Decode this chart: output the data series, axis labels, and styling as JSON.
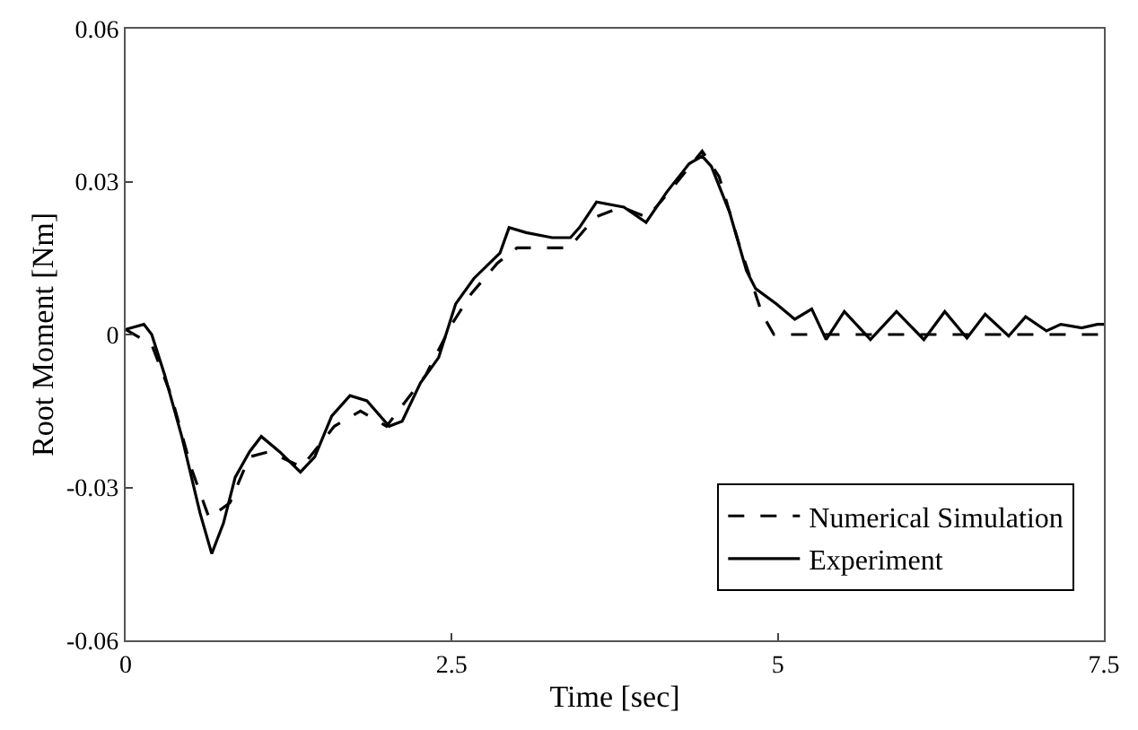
{
  "chart_data": {
    "type": "line",
    "xlabel": "Time [sec]",
    "ylabel": "Root Moment [Nm]",
    "xlim": [
      0,
      7.5
    ],
    "xticks": [
      0,
      2.5,
      5,
      7.5
    ],
    "ylim": [
      -0.06,
      0.06
    ],
    "yticks": [
      -0.06,
      -0.03,
      0,
      0.03,
      0.06
    ],
    "legend": "bottom right",
    "marker": "none",
    "series": [
      {
        "name": "Numerical Simulation",
        "color": "#000000",
        "line_style": "dashed",
        "x": [
          0,
          0.2,
          0.35,
          0.5,
          0.64,
          0.8,
          0.95,
          1.1,
          1.35,
          1.6,
          1.8,
          2.0,
          2.3,
          2.5,
          2.65,
          2.85,
          3.0,
          3.4,
          3.6,
          3.8,
          4.0,
          4.2,
          4.42,
          4.55,
          4.7,
          4.88,
          4.97,
          7.5
        ],
        "values": [
          0.001,
          -0.002,
          -0.012,
          -0.026,
          -0.036,
          -0.033,
          -0.024,
          -0.023,
          -0.026,
          -0.018,
          -0.015,
          -0.018,
          -0.008,
          0.002,
          0.008,
          0.014,
          0.017,
          0.017,
          0.023,
          0.025,
          0.023,
          0.029,
          0.036,
          0.031,
          0.018,
          0.004,
          0.0,
          0.0
        ]
      },
      {
        "name": "Experiment",
        "color": "#000000",
        "line_style": "solid",
        "x": [
          0,
          0.14,
          0.2,
          0.3,
          0.43,
          0.57,
          0.66,
          0.75,
          0.84,
          0.95,
          1.04,
          1.18,
          1.34,
          1.45,
          1.58,
          1.72,
          1.85,
          2.02,
          2.12,
          2.26,
          2.4,
          2.53,
          2.67,
          2.87,
          2.94,
          3.07,
          3.27,
          3.41,
          3.48,
          3.61,
          3.82,
          3.99,
          4.15,
          4.32,
          4.42,
          4.49,
          4.63,
          4.76,
          4.83,
          4.99,
          5.13,
          5.26,
          5.37,
          5.51,
          5.71,
          5.91,
          6.12,
          6.28,
          6.45,
          6.59,
          6.77,
          6.9,
          7.06,
          7.17,
          7.33,
          7.45,
          7.5
        ],
        "values": [
          0.001,
          0.002,
          0.0,
          -0.008,
          -0.02,
          -0.035,
          -0.043,
          -0.037,
          -0.028,
          -0.023,
          -0.02,
          -0.023,
          -0.027,
          -0.024,
          -0.016,
          -0.012,
          -0.013,
          -0.018,
          -0.017,
          -0.0095,
          -0.0045,
          0.006,
          0.011,
          0.016,
          0.021,
          0.02,
          0.019,
          0.019,
          0.021,
          0.026,
          0.025,
          0.022,
          0.028,
          0.0335,
          0.035,
          0.033,
          0.024,
          0.0125,
          0.009,
          0.006,
          0.003,
          0.005,
          -0.001,
          0.0045,
          -0.001,
          0.0045,
          -0.001,
          0.0045,
          -0.0007,
          0.004,
          -0.0003,
          0.0035,
          0.0007,
          0.002,
          0.0013,
          0.002,
          0.002
        ]
      }
    ]
  }
}
